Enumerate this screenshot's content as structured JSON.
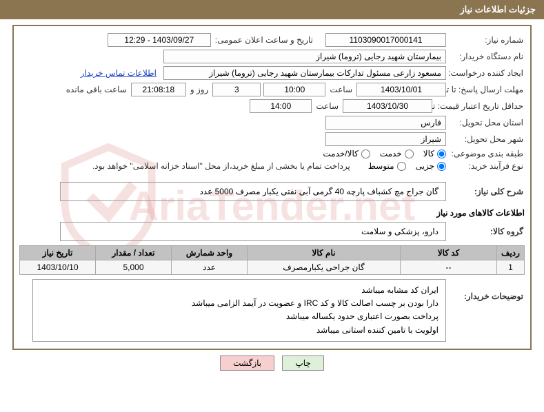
{
  "watermark": {
    "text": "AriaTender.net"
  },
  "colors": {
    "header_bg": "#8a7550",
    "header_fg": "#ffffff",
    "border": "#8a7550",
    "box_border": "#999999",
    "table_header_bg": "#c2c2c2",
    "table_cell_bg": "#f6f6f6",
    "link": "#1a3fbf",
    "btn_print_bg": "#dff0d8",
    "btn_back_bg": "#f7cfcf"
  },
  "header": {
    "title": "جزئیات اطلاعات نیاز"
  },
  "labels": {
    "need_no": "شماره نیاز:",
    "public_datetime": "تاریخ و ساعت اعلان عمومی:",
    "buyer_org": "نام دستگاه خریدار:",
    "requester": "ایجاد کننده درخواست:",
    "contact_link": "اطلاعات تماس خریدار",
    "reply_deadline": "مهلت ارسال پاسخ: تا تاریخ:",
    "hour": "ساعت",
    "days_and": "روز و",
    "remaining": "ساعت باقی مانده",
    "price_validity": "حداقل تاریخ اعتبار قیمت: تا تاریخ:",
    "delivery_province": "استان محل تحویل:",
    "delivery_city": "شهر محل تحویل:",
    "subject_class": "طبقه بندی موضوعی:",
    "buy_process": "نوع فرآیند خرید:",
    "payment_note": "پرداخت تمام یا بخشی از مبلغ خرید،از محل \"اسناد خزانه اسلامی\" خواهد بود.",
    "need_summary": "شرح کلی نیاز:",
    "goods_info": "اطلاعات کالاهای مورد نیاز",
    "goods_group": "گروه کالا:",
    "buyer_notes": "توضیحات خریدار:"
  },
  "values": {
    "need_no": "1103090017000141",
    "public_datetime": "1403/09/27 - 12:29",
    "buyer_org": "بیمارستان شهید رجایی (تروما) شیراز",
    "requester": "مسعود زارعی مسئول تدارکات بیمارستان شهید رجایی (تروما) شیراز",
    "reply_date": "1403/10/01",
    "reply_hour": "10:00",
    "remaining_days": "3",
    "remaining_time": "21:08:18",
    "price_validity_date": "1403/10/30",
    "price_validity_hour": "14:00",
    "province": "فارس",
    "city": "شیراز",
    "goods_group": "دارو، پزشکی و سلامت"
  },
  "subject_radios": {
    "options": [
      "کالا",
      "خدمت",
      "کالا/خدمت"
    ],
    "selected": 0
  },
  "process_radios": {
    "options": [
      "جزیی",
      "متوسط"
    ],
    "selected": 0
  },
  "summary": "گان جراح مچ کشباف پارچه 40 گرمی آبی نفتی یکبار مصرف 5000 عدد",
  "table": {
    "columns": [
      "ردیف",
      "کد کالا",
      "نام کالا",
      "واحد شمارش",
      "تعداد / مقدار",
      "تاریخ نیاز"
    ],
    "col_widths": [
      "40px",
      "140px",
      "auto",
      "110px",
      "110px",
      "110px"
    ],
    "rows": [
      [
        "1",
        "--",
        "گان جراحی یکبارمصرف",
        "عدد",
        "5,000",
        "1403/10/10"
      ]
    ]
  },
  "buyer_notes": [
    "ایران کد مشابه میباشد",
    "دارا بودن بر چسب اصالت کالا و کد IRC و عضویت در آیمد الزامی میباشد",
    "پرداخت بصورت اعتباری حدود یکساله میباشد",
    "اولویت با تامین کننده استانی میباشد"
  ],
  "buttons": {
    "print": "چاپ",
    "back": "بازگشت"
  }
}
